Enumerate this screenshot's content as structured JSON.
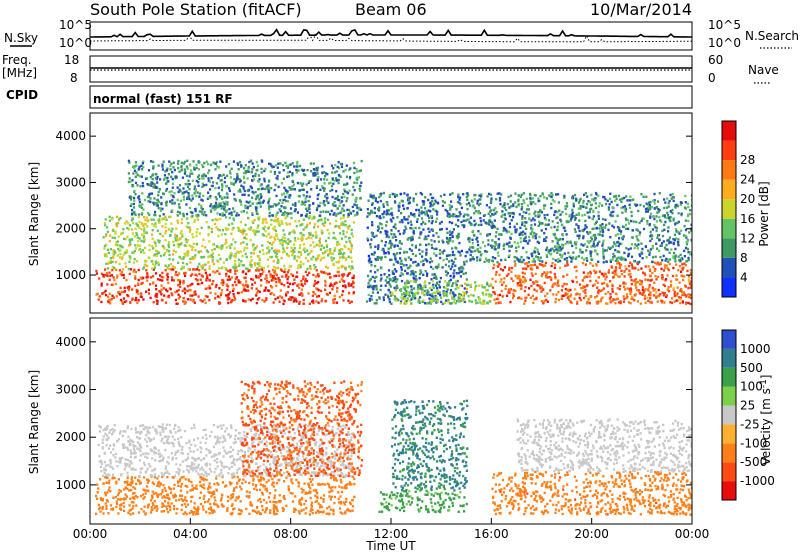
{
  "header": {
    "station": "South Pole Station (fitACF)",
    "beam": "Beam 06",
    "date": "10/Mar/2014"
  },
  "panels": {
    "nsky": {
      "label": "N.Sky",
      "right_label": "N.Search",
      "ticks_left": [
        "10^5",
        "10^0"
      ],
      "ticks_right": [
        "10^5",
        "10^0"
      ]
    },
    "freq": {
      "label_line1": "Freq.",
      "label_line2": "[MHz]",
      "ticks_left": [
        "18",
        "8"
      ],
      "right_label": "Nave",
      "ticks_right": [
        "60",
        "0"
      ]
    },
    "cpid": {
      "label": "CPID",
      "text": "normal (fast) 151 RF"
    }
  },
  "colors": {
    "power_scale": [
      "#1030ff",
      "#2050b8",
      "#3e9a64",
      "#62c462",
      "#c9d52b",
      "#ffad1f",
      "#ff7a14",
      "#ff3e14",
      "#e60c0c"
    ],
    "velocity_scale": [
      "#2e4fd0",
      "#2f7f8f",
      "#3aa04a",
      "#7ccf4a",
      "#c8c8c8",
      "#ffb030",
      "#ff8018",
      "#ff4a14",
      "#e80c0c"
    ]
  },
  "chart_data": [
    {
      "type": "heatmap",
      "title": "Power",
      "ylabel": "Slant Range [km]",
      "ylim": [
        180,
        4500
      ],
      "yticks": [
        "1000",
        "2000",
        "3000",
        "4000"
      ],
      "xlim": [
        "00:00",
        "24:00"
      ],
      "colorbar": {
        "label": "Power [dB]",
        "ticks": [
          "4",
          "8",
          "12",
          "16",
          "20",
          "24",
          "28"
        ],
        "range": [
          0,
          32
        ]
      },
      "regions": [
        {
          "t0": 0.2,
          "t1": 10.5,
          "r0": 400,
          "r1": 1150,
          "level": 27
        },
        {
          "t0": 0.5,
          "t1": 10.5,
          "r0": 1150,
          "r1": 2300,
          "level": 15
        },
        {
          "t0": 1.5,
          "t1": 10.8,
          "r0": 2300,
          "r1": 3500,
          "level": 8
        },
        {
          "t0": 11.0,
          "t1": 15.0,
          "r0": 400,
          "r1": 2800,
          "level": 7
        },
        {
          "t0": 12.0,
          "t1": 16.0,
          "r0": 400,
          "r1": 900,
          "level": 14
        },
        {
          "t0": 16.0,
          "t1": 24.0,
          "r0": 400,
          "r1": 1300,
          "level": 25
        },
        {
          "t0": 15.0,
          "t1": 24.0,
          "r0": 1300,
          "r1": 2800,
          "level": 8
        }
      ]
    },
    {
      "type": "heatmap",
      "title": "Velocity",
      "ylabel": "Slant Range [km]",
      "ylim": [
        180,
        4500
      ],
      "yticks": [
        "1000",
        "2000",
        "3000",
        "4000"
      ],
      "xlim": [
        "00:00",
        "24:00"
      ],
      "xticks": [
        "00:00",
        "04:00",
        "08:00",
        "12:00",
        "16:00",
        "20:00",
        "00:00"
      ],
      "xlabel": "Time UT",
      "colorbar": {
        "label": "Velocity [m s^-1]",
        "ticks": [
          "1000",
          "500",
          "100",
          "25",
          "-25",
          "-100",
          "-500",
          "-1000"
        ]
      },
      "regions": [
        {
          "t0": 0.2,
          "t1": 10.5,
          "r0": 400,
          "r1": 1200,
          "level": -250
        },
        {
          "t0": 0.3,
          "t1": 10.5,
          "r0": 1200,
          "r1": 2300,
          "level": 0
        },
        {
          "t0": 6.0,
          "t1": 10.8,
          "r0": 1200,
          "r1": 3200,
          "level": -600
        },
        {
          "t0": 11.5,
          "t1": 15.0,
          "r0": 450,
          "r1": 900,
          "level": 150
        },
        {
          "t0": 12.0,
          "t1": 15.0,
          "r0": 900,
          "r1": 2800,
          "level": 600
        },
        {
          "t0": 16.0,
          "t1": 24.0,
          "r0": 400,
          "r1": 1300,
          "level": -350
        },
        {
          "t0": 17.0,
          "t1": 24.0,
          "r0": 1300,
          "r1": 2400,
          "level": 0
        }
      ]
    }
  ]
}
